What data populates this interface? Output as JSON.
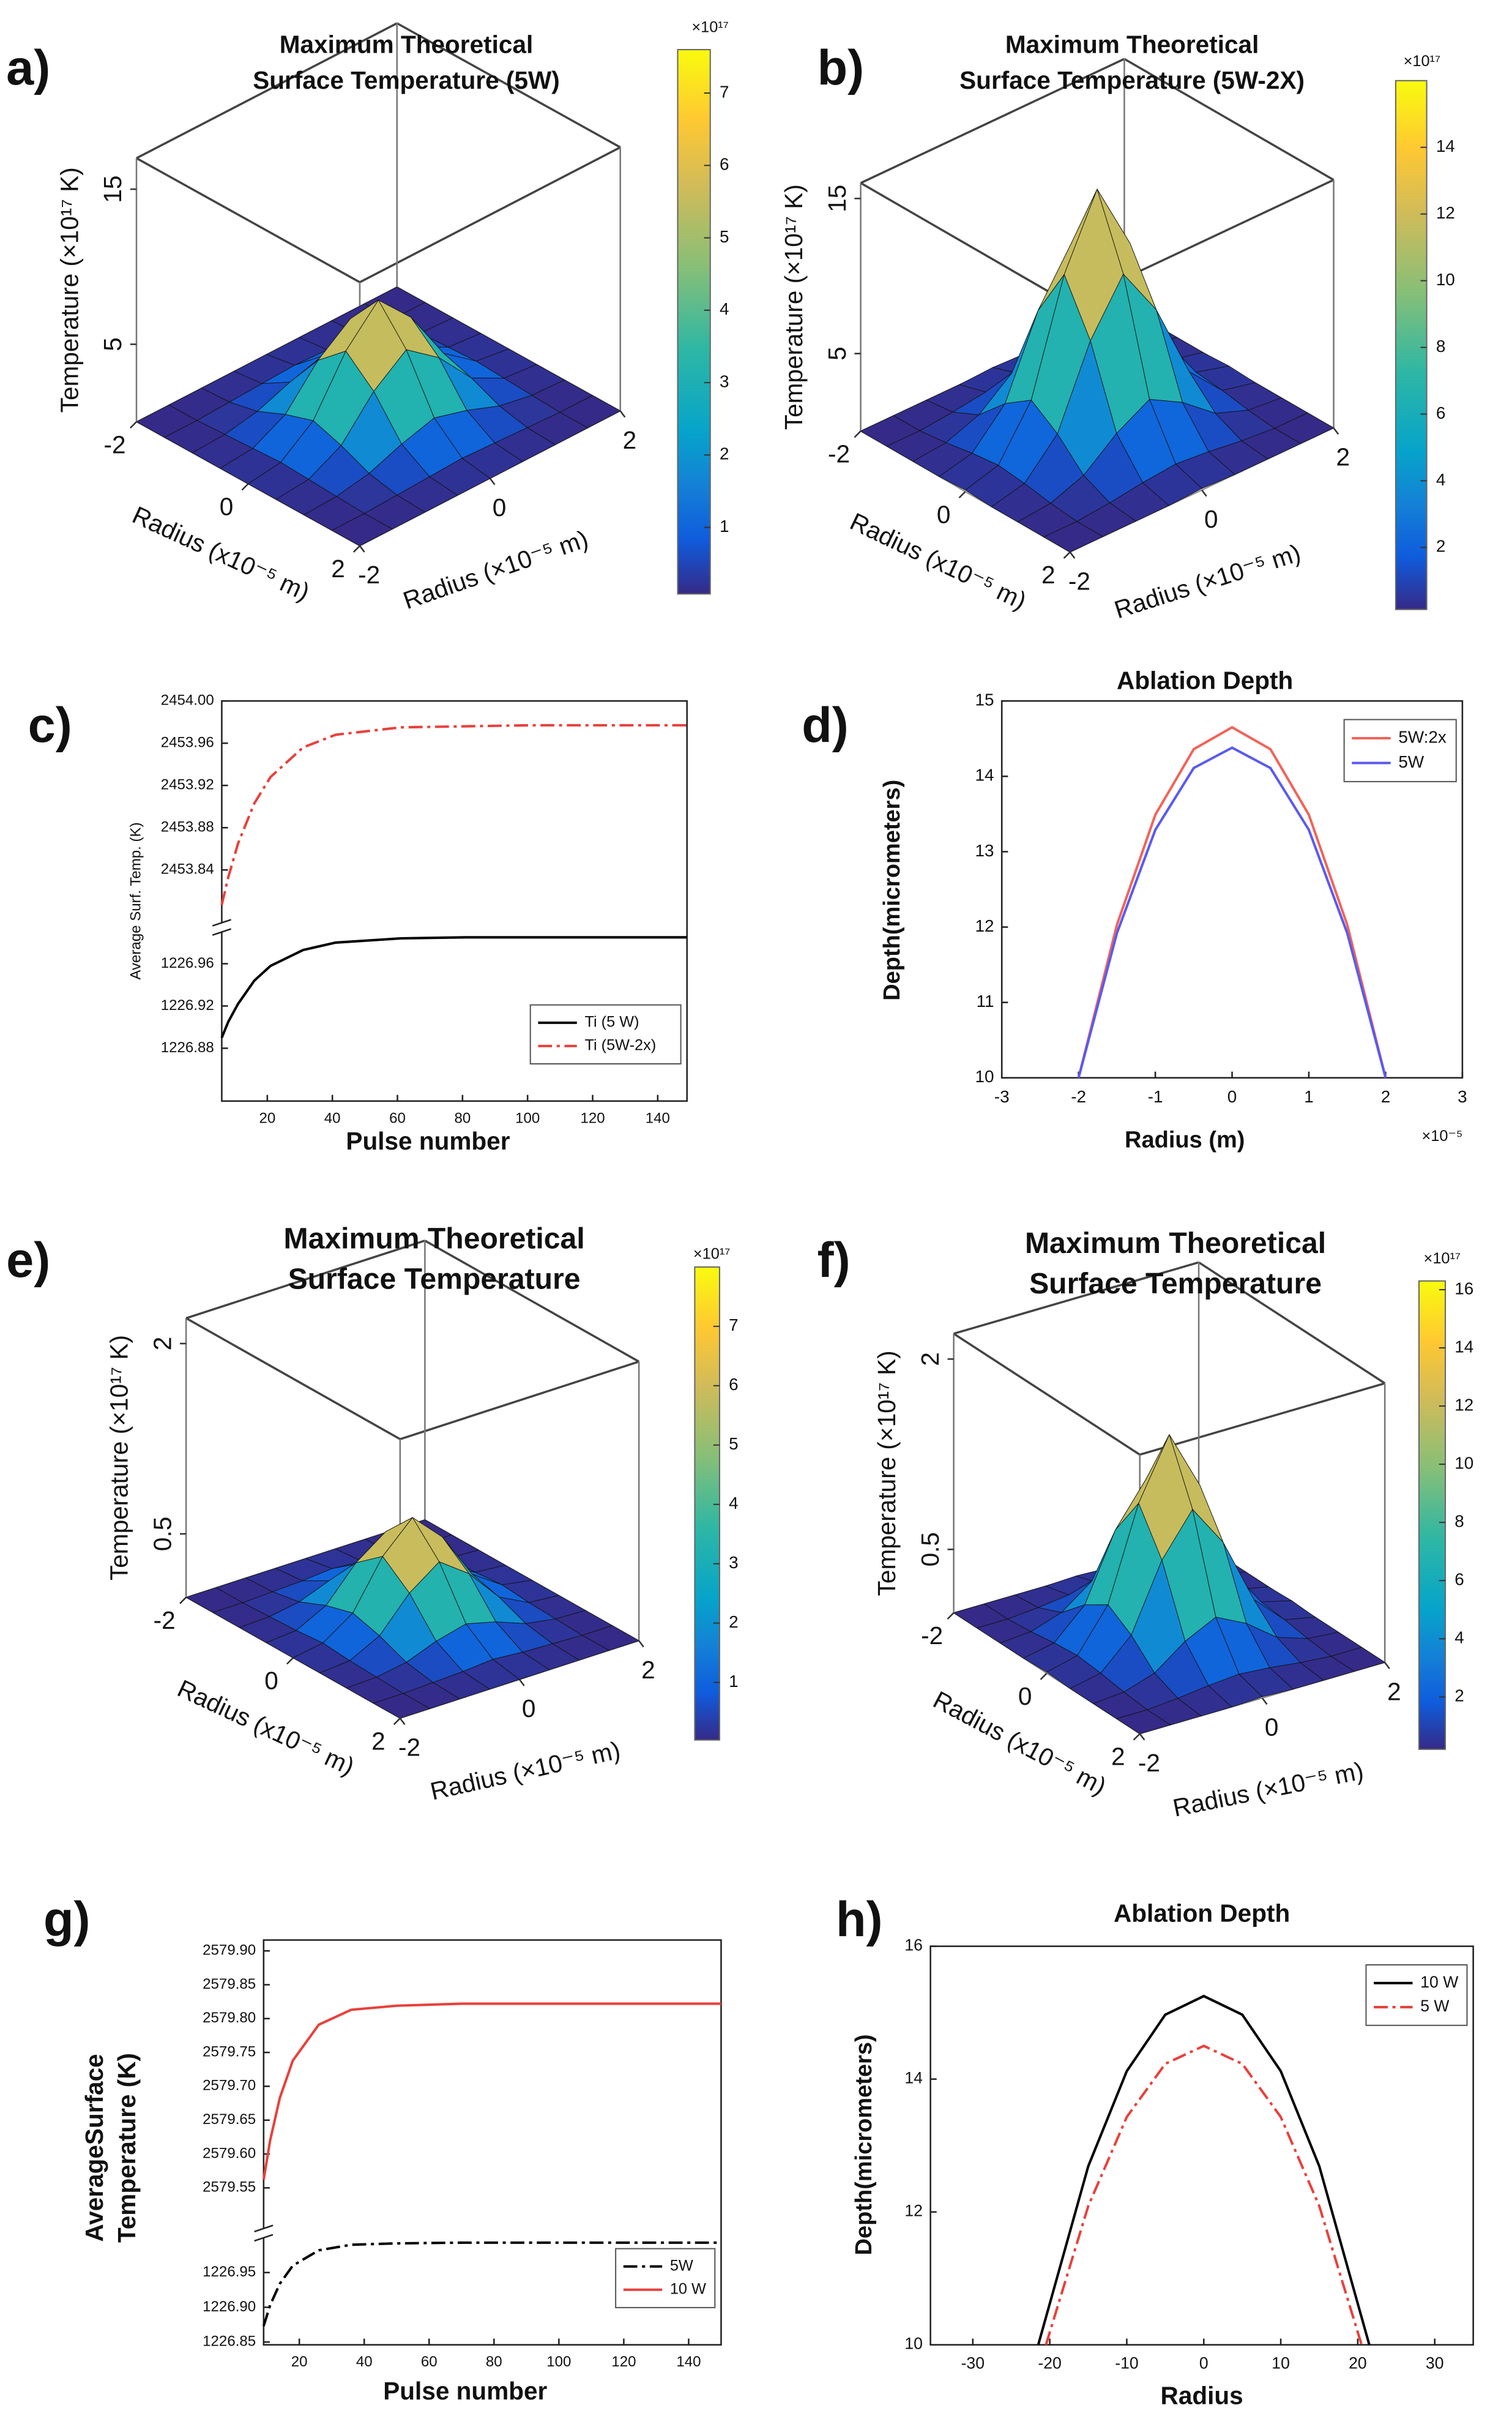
{
  "chart_data": [
    {
      "panel": "a)",
      "type": "surface",
      "title": [
        "Maximum Theoretical",
        "Surface Temperature (5W)"
      ],
      "x": [
        -2,
        -1.5,
        -1,
        -0.5,
        0,
        0.5,
        1,
        1.5,
        2
      ],
      "y": [
        -2,
        -1.5,
        -1,
        -0.5,
        0,
        0.5,
        1,
        1.5,
        2
      ],
      "z": [
        [
          0,
          0,
          0,
          0,
          0,
          0,
          0,
          0,
          0
        ],
        [
          0,
          0,
          0.1,
          0.2,
          0.3,
          0.2,
          0.1,
          0,
          0
        ],
        [
          0,
          0.1,
          0.5,
          1.3,
          1.9,
          1.3,
          0.5,
          0.1,
          0
        ],
        [
          0,
          0.2,
          1.3,
          3.7,
          5.3,
          3.7,
          1.3,
          0.2,
          0
        ],
        [
          0,
          0.3,
          1.9,
          5.3,
          7.5,
          5.3,
          1.9,
          0.3,
          0
        ],
        [
          0,
          0.2,
          1.3,
          3.7,
          5.3,
          3.7,
          1.3,
          0.2,
          0
        ],
        [
          0,
          0.1,
          0.5,
          1.3,
          1.9,
          1.3,
          0.5,
          0.1,
          0
        ],
        [
          0,
          0,
          0.1,
          0.2,
          0.3,
          0.2,
          0.1,
          0,
          0
        ],
        [
          0,
          0,
          0,
          0,
          0,
          0,
          0,
          0,
          0
        ]
      ],
      "xlim": [
        -2,
        2
      ],
      "ylim": [
        -2,
        2
      ],
      "zlim": [
        0,
        17
      ],
      "xticks": [
        -2,
        0,
        2
      ],
      "yticks": [
        -2,
        0,
        2
      ],
      "zticks": [
        5,
        15
      ],
      "xlabel": "Radius (x10⁻⁵ m)",
      "ylabel": "Radius (×10⁻⁵ m)",
      "zlabel": "Temperature (×10¹⁷ K)",
      "colorbar": {
        "clim": [
          0.08,
          7.6
        ],
        "ticks": [
          1,
          2,
          3,
          4,
          5,
          6,
          7
        ],
        "label": "×10¹⁷"
      }
    },
    {
      "panel": "b)",
      "type": "surface",
      "title": [
        "Maximum Theoretical",
        "Surface Temperature (5W-2X)"
      ],
      "x": [
        -2,
        -1.5,
        -1,
        -0.5,
        0,
        0.5,
        1,
        1.5,
        2
      ],
      "y": [
        -2,
        -1.5,
        -1,
        -0.5,
        0,
        0.5,
        1,
        1.5,
        2
      ],
      "z": [
        [
          0,
          0,
          0,
          0,
          0.1,
          0,
          0,
          0,
          0
        ],
        [
          0,
          0,
          0.2,
          0.5,
          0.7,
          0.5,
          0.2,
          0,
          0
        ],
        [
          0,
          0.2,
          1,
          2.7,
          3.9,
          2.7,
          1,
          0.2,
          0
        ],
        [
          0,
          0.5,
          2.7,
          7.7,
          11,
          7.7,
          2.7,
          0.5,
          0
        ],
        [
          0.1,
          0.7,
          3.9,
          11,
          15.5,
          11,
          3.9,
          0.7,
          0.1
        ],
        [
          0,
          0.5,
          2.7,
          7.7,
          11,
          7.7,
          2.7,
          0.5,
          0
        ],
        [
          0,
          0.2,
          1,
          2.7,
          3.9,
          2.7,
          1,
          0.2,
          0
        ],
        [
          0,
          0,
          0.2,
          0.5,
          0.7,
          0.5,
          0.2,
          0,
          0
        ],
        [
          0,
          0,
          0,
          0,
          0.1,
          0,
          0,
          0,
          0
        ]
      ],
      "xlim": [
        -2,
        2
      ],
      "ylim": [
        -2,
        2
      ],
      "zlim": [
        0,
        16
      ],
      "xticks": [
        -2,
        0,
        2
      ],
      "yticks": [
        -2,
        0,
        2
      ],
      "zticks": [
        5,
        15
      ],
      "xlabel": "Radius (x10⁻⁵ m)",
      "ylabel": "Radius (×10⁻⁵ m)",
      "zlabel": "Temperature (×10¹⁷ K)",
      "colorbar": {
        "clim": [
          0.14,
          16
        ],
        "ticks": [
          2,
          4,
          6,
          8,
          10,
          12,
          14
        ],
        "label": "×10¹⁷"
      }
    },
    {
      "panel": "c)",
      "type": "line",
      "xlabel": "Pulse number",
      "ylabel": "Average Surf. Temp. (K)",
      "xlim": [
        6,
        149
      ],
      "xticks": [
        20,
        40,
        60,
        80,
        100,
        120,
        140
      ],
      "ysegments": [
        {
          "ylim": [
            1226.83,
            1226.99
          ],
          "yticks": [
            1226.88,
            1226.92,
            1226.96
          ]
        },
        {
          "ylim": [
            2453.79,
            2454.0
          ],
          "yticks": [
            2453.84,
            2453.88,
            2453.92,
            2453.96,
            {
              "value": 2454,
              "label": "2454.00"
            }
          ]
        }
      ],
      "legend": "lower right",
      "series": [
        {
          "name": "Ti (5 W)",
          "color": "#000000",
          "dash": "solid",
          "segment": 0,
          "x": [
            6,
            8,
            11,
            16,
            21,
            31,
            41,
            61,
            81,
            101,
            121,
            149
          ],
          "values": [
            1226.89,
            1226.905,
            1226.922,
            1226.944,
            1226.958,
            1226.973,
            1226.98,
            1226.984,
            1226.985,
            1226.985,
            1226.985,
            1226.985
          ]
        },
        {
          "name": "Ti (5W-2x)",
          "color": "#e8413c",
          "dash": "dashdot",
          "segment": 1,
          "x": [
            6,
            8,
            11,
            16,
            21,
            31,
            41,
            61,
            81,
            101,
            121,
            149
          ],
          "values": [
            2453.807,
            2453.833,
            2453.865,
            2453.903,
            2453.928,
            2453.956,
            2453.968,
            2453.975,
            2453.976,
            2453.977,
            2453.977,
            2453.977
          ]
        }
      ]
    },
    {
      "panel": "d)",
      "type": "line",
      "title": "Ablation Depth",
      "xlabel": "Radius (m)",
      "ylabel": "Depth(micrometers)",
      "x_multiplier": "×10⁻⁵",
      "xlim": [
        -3,
        3
      ],
      "xticks": [
        -3,
        -2,
        -1,
        0,
        1,
        2,
        3
      ],
      "ylim": [
        10,
        15
      ],
      "yticks": [
        10,
        11,
        12,
        13,
        14,
        15
      ],
      "legend": "upper right",
      "series": [
        {
          "name": "5W:2x",
          "color": "#f0645a",
          "dash": "solid",
          "x": [
            -2,
            -1.5,
            -1,
            -0.5,
            0,
            0.5,
            1,
            1.5,
            2
          ],
          "values": [
            10,
            12.03,
            13.49,
            14.36,
            14.65,
            14.36,
            13.49,
            12.03,
            10
          ]
        },
        {
          "name": "5W",
          "color": "#5a5af0",
          "dash": "solid",
          "x": [
            -2,
            -1.5,
            -1,
            -0.5,
            0,
            0.5,
            1,
            1.5,
            2
          ],
          "values": [
            10,
            11.92,
            13.29,
            14.11,
            14.38,
            14.11,
            13.29,
            11.92,
            10
          ]
        }
      ]
    },
    {
      "panel": "e)",
      "type": "surface",
      "title": [
        "Maximum Theoretical",
        "Surface Temperature"
      ],
      "x": [
        -2,
        -1.5,
        -1,
        -0.5,
        0,
        0.5,
        1,
        1.5,
        2
      ],
      "y": [
        -2,
        -1.5,
        -1,
        -0.5,
        0,
        0.5,
        1,
        1.5,
        2
      ],
      "z": [
        [
          0,
          0,
          0,
          0,
          0,
          0,
          0,
          0,
          0
        ],
        [
          0,
          0,
          0.01,
          0.02,
          0.04,
          0.02,
          0.01,
          0,
          0
        ],
        [
          0,
          0.01,
          0.05,
          0.14,
          0.2,
          0.14,
          0.05,
          0.01,
          0
        ],
        [
          0,
          0.02,
          0.14,
          0.4,
          0.57,
          0.4,
          0.14,
          0.02,
          0
        ],
        [
          0,
          0.04,
          0.2,
          0.57,
          0.8,
          0.57,
          0.2,
          0.04,
          0
        ],
        [
          0,
          0.02,
          0.14,
          0.4,
          0.57,
          0.4,
          0.14,
          0.02,
          0
        ],
        [
          0,
          0.01,
          0.05,
          0.14,
          0.2,
          0.14,
          0.05,
          0.01,
          0
        ],
        [
          0,
          0,
          0.01,
          0.02,
          0.04,
          0.02,
          0.01,
          0,
          0
        ],
        [
          0,
          0,
          0,
          0,
          0,
          0,
          0,
          0,
          0
        ]
      ],
      "xlim": [
        -2,
        2
      ],
      "ylim": [
        -2,
        2
      ],
      "zlim": [
        0,
        2.2
      ],
      "xticks": [
        -2,
        0,
        2
      ],
      "yticks": [
        -2,
        0,
        2
      ],
      "zticks": [
        0.5,
        2
      ],
      "xlabel": "Radius (x10⁻⁵ m)",
      "ylabel": "Radius (×10⁻⁵ m)",
      "zlabel": "Temperature (×10¹⁷ K)",
      "colorbar": {
        "clim": [
          0.03,
          8
        ],
        "ticks": [
          1,
          2,
          3,
          4,
          5,
          6,
          7
        ],
        "label": "×10¹⁷"
      }
    },
    {
      "panel": "f)",
      "type": "surface",
      "title": [
        "Maximum Theoretical",
        "Surface Temperature"
      ],
      "x": [
        -2,
        -1.5,
        -1,
        -0.5,
        0,
        0.5,
        1,
        1.5,
        2
      ],
      "y": [
        -2,
        -1.5,
        -1,
        -0.5,
        0,
        0.5,
        1,
        1.5,
        2
      ],
      "z": [
        [
          0,
          0,
          0,
          0,
          0.01,
          0,
          0,
          0,
          0
        ],
        [
          0,
          0,
          0.02,
          0.05,
          0.07,
          0.05,
          0.02,
          0,
          0
        ],
        [
          0,
          0.02,
          0.1,
          0.28,
          0.4,
          0.28,
          0.1,
          0.02,
          0
        ],
        [
          0,
          0.05,
          0.28,
          0.8,
          1.13,
          0.8,
          0.28,
          0.05,
          0
        ],
        [
          0.01,
          0.07,
          0.4,
          1.13,
          1.6,
          1.13,
          0.4,
          0.07,
          0.01
        ],
        [
          0,
          0.05,
          0.28,
          0.8,
          1.13,
          0.8,
          0.28,
          0.05,
          0
        ],
        [
          0,
          0.02,
          0.1,
          0.28,
          0.4,
          0.28,
          0.1,
          0.02,
          0
        ],
        [
          0,
          0,
          0.02,
          0.05,
          0.07,
          0.05,
          0.02,
          0,
          0
        ],
        [
          0,
          0,
          0,
          0,
          0.01,
          0,
          0,
          0,
          0
        ]
      ],
      "xlim": [
        -2,
        2
      ],
      "ylim": [
        -2,
        2
      ],
      "zlim": [
        0,
        2.2
      ],
      "xticks": [
        -2,
        0,
        2
      ],
      "yticks": [
        -2,
        0,
        2
      ],
      "zticks": [
        0.5,
        2
      ],
      "xlabel": "Radius (x10⁻⁵ m)",
      "ylabel": "Radius (×10⁻⁵ m)",
      "zlabel": "Temperature (×10¹⁷ K)",
      "colorbar": {
        "clim": [
          0.2,
          16.3
        ],
        "ticks": [
          2,
          4,
          6,
          8,
          10,
          12,
          14,
          16
        ],
        "label": "×10¹⁷"
      }
    },
    {
      "panel": "g)",
      "type": "line",
      "xlabel": "Pulse number",
      "ylabel": [
        "AverageSurface",
        "Temperature (K)"
      ],
      "xlim": [
        9,
        150
      ],
      "xticks": [
        20,
        40,
        60,
        80,
        100,
        120,
        140
      ],
      "ysegments": [
        {
          "ylim": [
            1226.846,
            1227.0
          ],
          "yticks": [
            1226.85,
            {
              "value": 1226.9,
              "label": "1226.90"
            },
            1226.95
          ]
        },
        {
          "ylim": [
            2579.49,
            2579.916
          ],
          "yticks": [
            2579.55,
            {
              "value": 2579.6,
              "label": "2579.60"
            },
            2579.65,
            {
              "value": 2579.7,
              "label": "2579.70"
            },
            2579.75,
            {
              "value": 2579.8,
              "label": "2579.80"
            },
            2579.85,
            {
              "value": 2579.9,
              "label": "2579.90"
            }
          ]
        }
      ],
      "legend": "lower right",
      "series": [
        {
          "name": "5W",
          "color": "#000000",
          "dash": "dashdot",
          "segment": 0,
          "x": [
            9,
            11,
            14,
            18,
            26,
            36,
            50,
            70,
            90,
            110,
            130,
            150
          ],
          "values": [
            1226.873,
            1226.903,
            1226.934,
            1226.96,
            1226.982,
            1226.99,
            1226.992,
            1226.993,
            1226.993,
            1226.993,
            1226.993,
            1226.993
          ]
        },
        {
          "name": "10 W",
          "color": "#e8413c",
          "dash": "solid",
          "segment": 1,
          "x": [
            9,
            11,
            14,
            18,
            26,
            36,
            50,
            70,
            90,
            110,
            130,
            150
          ],
          "values": [
            2579.562,
            2579.62,
            2579.683,
            2579.738,
            2579.791,
            2579.813,
            2579.819,
            2579.822,
            2579.822,
            2579.822,
            2579.822,
            2579.822
          ]
        }
      ]
    },
    {
      "panel": "h)",
      "type": "line",
      "title": "Ablation Depth",
      "xlabel": "Radius",
      "ylabel": "Depth(micrometers)",
      "xlim": [
        -35.5,
        35
      ],
      "xticks": [
        -30,
        -20,
        -10,
        0,
        10,
        20,
        30
      ],
      "ylim": [
        10,
        16
      ],
      "yticks": [
        10,
        12,
        14,
        16
      ],
      "legend": "upper right",
      "series": [
        {
          "name": "10 W",
          "color": "#000000",
          "dash": "solid",
          "x": [
            -21.5,
            -15,
            -10,
            -5,
            0,
            5,
            10,
            15,
            21.5
          ],
          "values": [
            10,
            12.69,
            14.12,
            14.97,
            15.25,
            14.97,
            14.12,
            12.69,
            10
          ]
        },
        {
          "name": "5 W",
          "color": "#e8413c",
          "dash": "dashdot",
          "x": [
            -20.5,
            -15,
            -10,
            -5,
            0,
            5,
            10,
            15,
            20.5
          ],
          "values": [
            10,
            12.09,
            13.43,
            14.23,
            14.5,
            14.23,
            13.43,
            12.09,
            10
          ]
        }
      ]
    }
  ]
}
